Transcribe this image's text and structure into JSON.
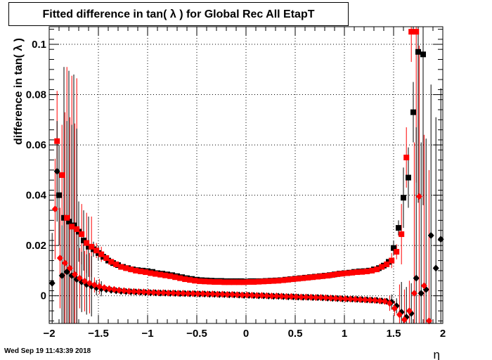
{
  "title": "Fitted difference in tan( λ ) for Global Rec All EtapT",
  "timestamp": "Wed Sep 19 11:43:39 2018",
  "chart_data": {
    "type": "scatter",
    "title": "Fitted difference in tan( λ ) for Global Rec All EtapT",
    "xlabel": "η",
    "ylabel": "difference in tan( λ )",
    "xlim": [
      -2,
      2
    ],
    "ylim": [
      -0.011,
      0.107
    ],
    "grid": true,
    "x_ticks": [
      -2,
      -1.5,
      -1,
      -0.5,
      0,
      0.5,
      1,
      1.5,
      2
    ],
    "x_tick_labels": [
      "−2",
      "−1.5",
      "−1",
      "−0.5",
      "0",
      "0.5",
      "1",
      "1.5",
      "2"
    ],
    "y_ticks": [
      0,
      0.02,
      0.04,
      0.06,
      0.08,
      0.1
    ],
    "y_tick_labels": [
      "0",
      "0.02",
      "0.04",
      "0.06",
      "0.08",
      "0.1"
    ],
    "series": [
      {
        "marker": "square",
        "color": "#000000",
        "x": [
          -1.9,
          -1.85,
          -1.8,
          -1.75,
          -1.7,
          -1.65,
          -1.6,
          -1.55,
          -1.5,
          -1.45,
          -1.4,
          -1.35,
          -1.3,
          -1.25,
          -1.2,
          -1.15,
          -1.1,
          -1.05,
          -1.0,
          -0.95,
          -0.9,
          -0.85,
          -0.8,
          -0.75,
          -0.7,
          -0.65,
          -0.6,
          -0.55,
          -0.5,
          -0.45,
          -0.4,
          -0.35,
          -0.3,
          -0.25,
          -0.2,
          -0.15,
          -0.1,
          -0.05,
          0.0,
          0.05,
          0.1,
          0.15,
          0.2,
          0.25,
          0.3,
          0.35,
          0.4,
          0.45,
          0.5,
          0.55,
          0.6,
          0.65,
          0.7,
          0.75,
          0.8,
          0.85,
          0.9,
          0.95,
          1.0,
          1.05,
          1.1,
          1.15,
          1.2,
          1.25,
          1.3,
          1.35,
          1.4,
          1.45,
          1.5,
          1.55,
          1.6,
          1.65,
          1.7,
          1.75,
          1.8
        ],
        "y": [
          0.04,
          0.031,
          0.0295,
          0.028,
          0.0255,
          0.022,
          0.0195,
          0.0185,
          0.017,
          0.0155,
          0.014,
          0.013,
          0.0122,
          0.0115,
          0.011,
          0.0105,
          0.0102,
          0.01,
          0.0098,
          0.0095,
          0.009,
          0.0088,
          0.0085,
          0.0082,
          0.0078,
          0.0074,
          0.007,
          0.0067,
          0.0064,
          0.0062,
          0.0061,
          0.006,
          0.0059,
          0.0059,
          0.0058,
          0.0058,
          0.0058,
          0.0058,
          0.0057,
          0.0058,
          0.0058,
          0.0058,
          0.0059,
          0.006,
          0.0061,
          0.0062,
          0.0064,
          0.0066,
          0.0068,
          0.007,
          0.0072,
          0.0074,
          0.0076,
          0.0078,
          0.008,
          0.0082,
          0.0085,
          0.0088,
          0.009,
          0.0092,
          0.0095,
          0.0097,
          0.0098,
          0.01,
          0.0105,
          0.011,
          0.012,
          0.0135,
          0.019,
          0.027,
          0.039,
          0.047,
          0.073,
          0.097,
          0.096
        ]
      },
      {
        "marker": "square",
        "color": "#ff0000",
        "x": [
          -1.92,
          -1.87,
          -1.82,
          -1.77,
          -1.72,
          -1.67,
          -1.62,
          -1.57,
          -1.52,
          -1.47,
          -1.42,
          -1.37,
          -1.32,
          -1.27,
          -1.22,
          -1.17,
          -1.12,
          -1.07,
          -1.02,
          -0.97,
          -0.92,
          -0.87,
          -0.82,
          -0.77,
          -0.72,
          -0.67,
          -0.62,
          -0.57,
          -0.52,
          -0.47,
          -0.42,
          -0.37,
          -0.32,
          -0.27,
          -0.22,
          -0.17,
          -0.12,
          -0.07,
          -0.02,
          0.03,
          0.08,
          0.13,
          0.18,
          0.23,
          0.28,
          0.33,
          0.38,
          0.43,
          0.48,
          0.53,
          0.58,
          0.63,
          0.68,
          0.73,
          0.78,
          0.83,
          0.88,
          0.93,
          0.98,
          1.03,
          1.08,
          1.13,
          1.18,
          1.23,
          1.28,
          1.33,
          1.38,
          1.43,
          1.48,
          1.53,
          1.58,
          1.63,
          1.68,
          1.73
        ],
        "y": [
          0.0615,
          0.048,
          0.031,
          0.0275,
          0.0265,
          0.0245,
          0.021,
          0.0195,
          0.018,
          0.0165,
          0.015,
          0.0135,
          0.0125,
          0.0115,
          0.011,
          0.0105,
          0.01,
          0.0097,
          0.0094,
          0.009,
          0.0087,
          0.0084,
          0.0081,
          0.0078,
          0.0074,
          0.007,
          0.0066,
          0.0063,
          0.006,
          0.0058,
          0.0057,
          0.0056,
          0.0055,
          0.0055,
          0.0054,
          0.0054,
          0.0054,
          0.0054,
          0.0054,
          0.0055,
          0.0055,
          0.0056,
          0.0057,
          0.0058,
          0.0059,
          0.006,
          0.0062,
          0.0064,
          0.0066,
          0.0068,
          0.007,
          0.0072,
          0.0074,
          0.0076,
          0.0078,
          0.008,
          0.0083,
          0.0086,
          0.0088,
          0.009,
          0.0092,
          0.0094,
          0.0095,
          0.0097,
          0.01,
          0.0105,
          0.0115,
          0.0125,
          0.014,
          0.0175,
          0.0245,
          0.055,
          0.105,
          0.105
        ]
      },
      {
        "marker": "diamond",
        "color": "#000000",
        "x": [
          -1.97,
          -1.92,
          -1.87,
          -1.82,
          -1.77,
          -1.72,
          -1.67,
          -1.62,
          -1.57,
          -1.52,
          -1.47,
          -1.42,
          -1.37,
          -1.32,
          -1.27,
          -1.22,
          -1.17,
          -1.12,
          -1.07,
          -1.02,
          -0.97,
          -0.92,
          -0.87,
          -0.82,
          -0.77,
          -0.72,
          -0.67,
          -0.62,
          -0.57,
          -0.52,
          -0.47,
          -0.42,
          -0.37,
          -0.32,
          -0.27,
          -0.22,
          -0.17,
          -0.12,
          -0.07,
          -0.02,
          0.03,
          0.08,
          0.13,
          0.18,
          0.23,
          0.28,
          0.33,
          0.38,
          0.43,
          0.48,
          0.53,
          0.58,
          0.63,
          0.68,
          0.73,
          0.78,
          0.83,
          0.88,
          0.93,
          0.98,
          1.03,
          1.08,
          1.13,
          1.18,
          1.23,
          1.28,
          1.33,
          1.38,
          1.43,
          1.48,
          1.53,
          1.58,
          1.63,
          1.68,
          1.73,
          1.78,
          1.83,
          1.88,
          1.93,
          1.98
        ],
        "y": [
          0.005,
          0.0495,
          0.008,
          0.0095,
          0.008,
          0.0065,
          0.0055,
          0.0045,
          0.0038,
          0.0032,
          0.0028,
          0.0025,
          0.0022,
          0.002,
          0.0018,
          0.0017,
          0.0016,
          0.0015,
          0.0014,
          0.0013,
          0.0012,
          0.0012,
          0.0011,
          0.0011,
          0.001,
          0.001,
          0.0009,
          0.0009,
          0.0008,
          0.0008,
          0.0007,
          0.0007,
          0.0006,
          0.0006,
          0.0005,
          0.0005,
          0.0004,
          0.0004,
          0.0003,
          0.0002,
          0.0002,
          0.0001,
          0.0,
          0.0,
          -0.0001,
          -0.0002,
          -0.0002,
          -0.0003,
          -0.0004,
          -0.0004,
          -0.0005,
          -0.0006,
          -0.0006,
          -0.0007,
          -0.0007,
          -0.0008,
          -0.0009,
          -0.001,
          -0.0011,
          -0.0012,
          -0.0012,
          -0.0013,
          -0.0014,
          -0.0015,
          -0.0016,
          -0.0017,
          -0.0018,
          -0.002,
          -0.0022,
          -0.0025,
          -0.004,
          -0.0065,
          -0.0085,
          -0.007,
          0.007,
          0.001,
          0.0025,
          0.024,
          0.011,
          0.0225
        ]
      },
      {
        "marker": "diamond",
        "color": "#ff0000",
        "x": [
          -1.94,
          -1.89,
          -1.84,
          -1.79,
          -1.74,
          -1.69,
          -1.64,
          -1.59,
          -1.54,
          -1.49,
          -1.44,
          -1.39,
          -1.34,
          -1.29,
          -1.24,
          -1.19,
          -1.14,
          -1.09,
          -1.04,
          -0.99,
          -0.94,
          -0.89,
          -0.84,
          -0.79,
          -0.74,
          -0.69,
          -0.64,
          -0.59,
          -0.54,
          -0.49,
          -0.44,
          -0.39,
          -0.34,
          -0.29,
          -0.24,
          -0.19,
          -0.14,
          -0.09,
          -0.04,
          0.01,
          0.06,
          0.11,
          0.16,
          0.21,
          0.26,
          0.31,
          0.36,
          0.41,
          0.46,
          0.51,
          0.56,
          0.61,
          0.66,
          0.71,
          0.76,
          0.81,
          0.86,
          0.91,
          0.96,
          1.01,
          1.06,
          1.11,
          1.16,
          1.21,
          1.26,
          1.31,
          1.36,
          1.41,
          1.46,
          1.51,
          1.56,
          1.61,
          1.66,
          1.71,
          1.76,
          1.81,
          1.86
        ],
        "y": [
          0.0345,
          0.015,
          0.013,
          0.011,
          0.0085,
          0.007,
          0.0058,
          0.005,
          0.0043,
          0.0037,
          0.0032,
          0.0028,
          0.0025,
          0.0022,
          0.002,
          0.0018,
          0.0017,
          0.0016,
          0.0015,
          0.0014,
          0.0013,
          0.0012,
          0.0012,
          0.0011,
          0.0011,
          0.001,
          0.001,
          0.0009,
          0.0009,
          0.0008,
          0.0008,
          0.0007,
          0.0007,
          0.0006,
          0.0006,
          0.0005,
          0.0005,
          0.0004,
          0.0003,
          0.0003,
          0.0002,
          0.0001,
          0.0001,
          0.0,
          -0.0001,
          -0.0001,
          -0.0002,
          -0.0003,
          -0.0003,
          -0.0004,
          -0.0005,
          -0.0005,
          -0.0006,
          -0.0007,
          -0.0007,
          -0.0008,
          -0.0009,
          -0.001,
          -0.0011,
          -0.0012,
          -0.0013,
          -0.0014,
          -0.0015,
          -0.0016,
          -0.0017,
          -0.0018,
          -0.002,
          -0.0022,
          -0.003,
          -0.005,
          -0.0075,
          -0.0095,
          -0.006,
          0.001,
          0.0395,
          0.004,
          -0.01
        ]
      }
    ],
    "error_bar_note": "vertical error bars on each point, large at edges"
  }
}
